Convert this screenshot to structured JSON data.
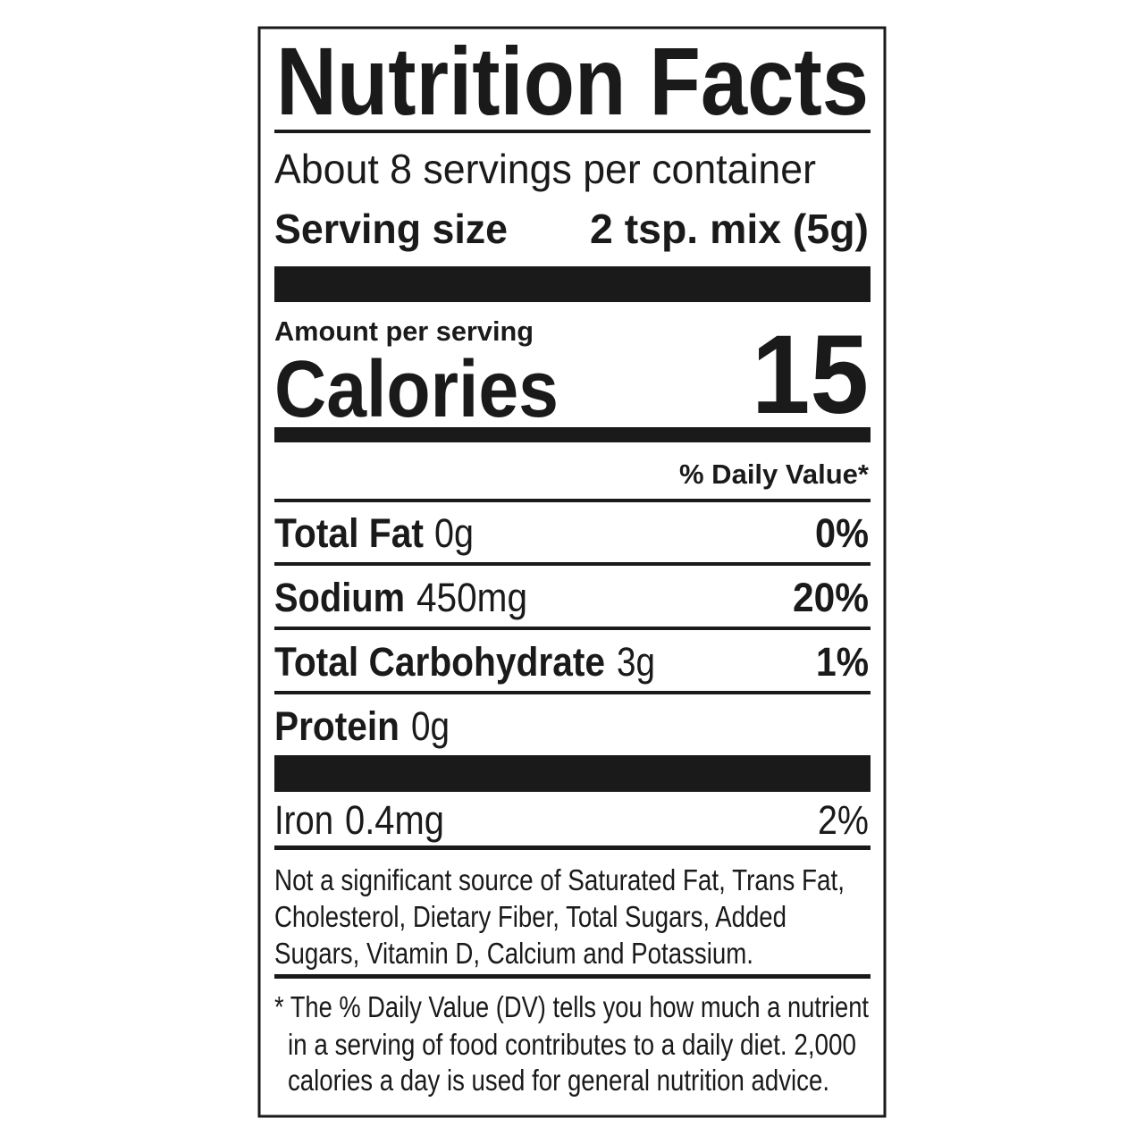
{
  "header": {
    "title": "Nutrition Facts",
    "servings": "About 8 servings per container",
    "serving_size_label": "Serving size",
    "serving_size": "2 tsp. mix (5g)"
  },
  "calories": {
    "label": "Amount per serving",
    "name": "Calories",
    "value": 15
  },
  "daily_value_header": "% Daily Value*",
  "nutrients": [
    {
      "name": "Total Fat",
      "amount": "0g",
      "dv": "0%"
    },
    {
      "name": "Sodium",
      "amount": "450mg",
      "dv": "20%"
    },
    {
      "name": "Total Carbohydrate",
      "amount": "3g",
      "dv": "1%"
    },
    {
      "name": "Protein",
      "amount": "0g"
    }
  ],
  "minerals": [
    {
      "name": "Iron",
      "amount": "0.4mg",
      "dv": "2%"
    }
  ],
  "footnotes": {
    "not_significant": [
      "Not a significant source of Saturated Fat, Trans Fat,",
      "Cholesterol, Dietary Fiber, Total Sugars, Added",
      "Sugars, Vitamin D, Calcium and Potassium."
    ],
    "daily_value": [
      "* The % Daily Value (DV) tells you how much a nutrient",
      "in a serving of food contributes to a daily diet. 2,000",
      "calories a day is used for general nutrition advice."
    ]
  }
}
